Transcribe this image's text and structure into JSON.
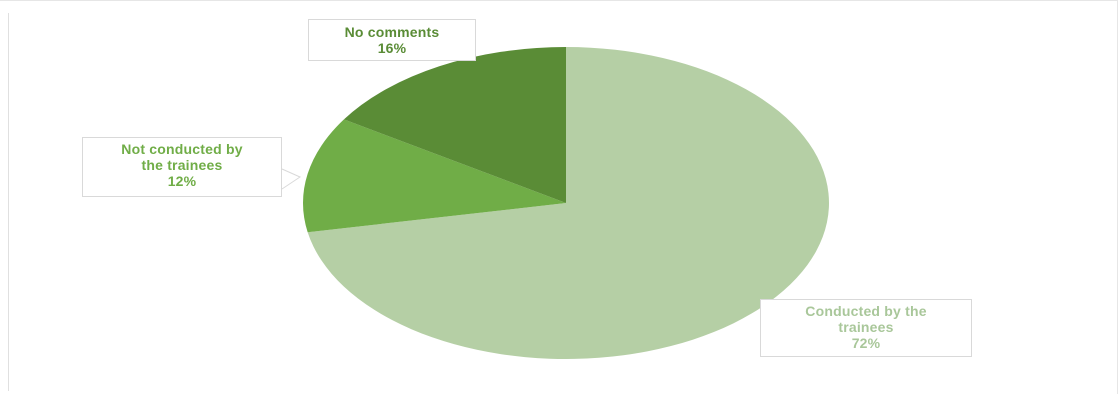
{
  "chart_data": {
    "type": "pie",
    "title": "",
    "start_angle_deg": 0,
    "direction": "clockwise",
    "slices": [
      {
        "label_line1": "Conducted by the",
        "label_line2": "trainees",
        "label": "Conducted by the trainees",
        "value": 72,
        "value_label": "72%",
        "color": "#b5cfa5",
        "text_color": "#a9c79a"
      },
      {
        "label_line1": "Not conducted by",
        "label_line2": "the trainees",
        "label": "Not conducted by the trainees",
        "value": 12,
        "value_label": "12%",
        "color": "#70ad47",
        "text_color": "#70ad47"
      },
      {
        "label_line1": "No comments",
        "label_line2": "",
        "label": "No comments",
        "value": 16,
        "value_label": "16%",
        "color": "#5a8c36",
        "text_color": "#5a8c36"
      }
    ]
  }
}
